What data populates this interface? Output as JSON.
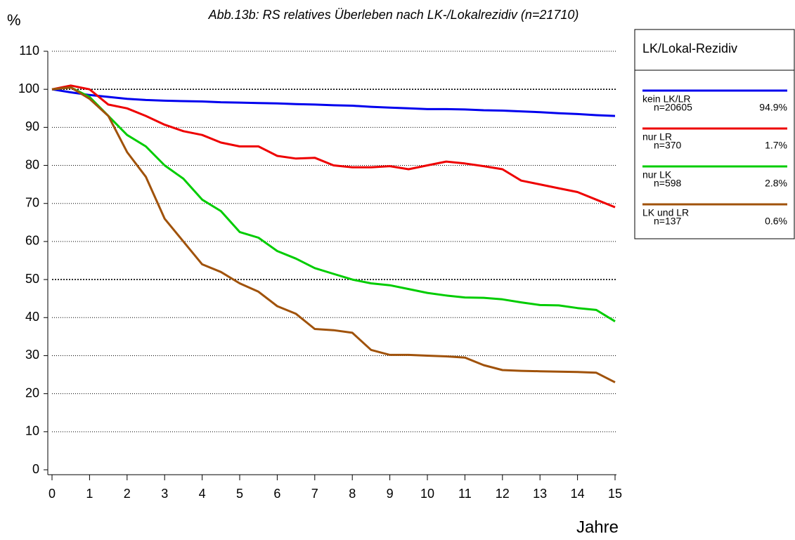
{
  "chart_data": {
    "type": "line",
    "title": "Abb.13b: RS relatives Überleben nach LK-/Lokalrezidiv (n=21710)",
    "y_label": "%",
    "x_label": "Jahre",
    "legend_title": "LK/Lokal-Rezidiv",
    "x": [
      0,
      0.5,
      1,
      1.5,
      2,
      2.5,
      3,
      3.5,
      4,
      4.5,
      5,
      5.5,
      6,
      6.5,
      7,
      7.5,
      8,
      8.5,
      9,
      9.5,
      10,
      10.5,
      11,
      11.5,
      12,
      12.5,
      13,
      13.5,
      14,
      14.5,
      15
    ],
    "series": [
      {
        "name": "kein LK/LR",
        "n_label": "n=20605",
        "share_label": "94.9%",
        "color": "#0000ee",
        "values": [
          100,
          99.2,
          98.5,
          98,
          97.5,
          97.2,
          97,
          96.9,
          96.8,
          96.6,
          96.5,
          96.4,
          96.3,
          96.1,
          96,
          95.8,
          95.7,
          95.4,
          95.2,
          95,
          94.8,
          94.8,
          94.7,
          94.5,
          94.4,
          94.2,
          94,
          93.7,
          93.5,
          93.2,
          93
        ]
      },
      {
        "name": "nur LR",
        "n_label": "n=370",
        "share_label": "1.7%",
        "color": "#ee0000",
        "values": [
          100,
          101,
          100,
          96,
          95,
          93,
          90.7,
          89,
          88,
          86,
          85,
          85,
          82.5,
          81.8,
          82,
          80,
          79.5,
          79.5,
          79.8,
          79,
          80,
          81,
          80.5,
          79.8,
          79,
          76,
          75,
          74,
          73,
          71,
          69
        ]
      },
      {
        "name": "nur LK",
        "n_label": "n=598",
        "share_label": "2.8%",
        "color": "#00cc00",
        "values": [
          100,
          100.5,
          98,
          93,
          88,
          85,
          80,
          76.5,
          71,
          68,
          62.5,
          61,
          57.5,
          55.5,
          53,
          51.5,
          50,
          49,
          48.5,
          47.5,
          46.5,
          45.8,
          45.3,
          45.2,
          44.8,
          44,
          43.3,
          43.2,
          42.5,
          42,
          39
        ]
      },
      {
        "name": "LK und LR",
        "n_label": "n=137",
        "share_label": "0.6%",
        "color": "#a0520a",
        "values": [
          100,
          100.5,
          97.5,
          93,
          83.5,
          77,
          66,
          60,
          54,
          52,
          49,
          46.8,
          43,
          41,
          37,
          36.7,
          36,
          31.5,
          30.2,
          30.2,
          30,
          29.8,
          29.5,
          27.5,
          26.2,
          26,
          25.9,
          25.8,
          25.7,
          25.5,
          23
        ]
      }
    ],
    "xlim": [
      0,
      15
    ],
    "xticks": [
      0,
      1,
      2,
      3,
      4,
      5,
      6,
      7,
      8,
      9,
      10,
      11,
      12,
      13,
      14,
      15
    ],
    "ylim": [
      0,
      110
    ],
    "yticks": [
      0,
      10,
      20,
      30,
      40,
      50,
      60,
      70,
      80,
      90,
      100,
      110
    ],
    "grid": true,
    "bold_grid": [
      50,
      100
    ],
    "legend": "right"
  }
}
